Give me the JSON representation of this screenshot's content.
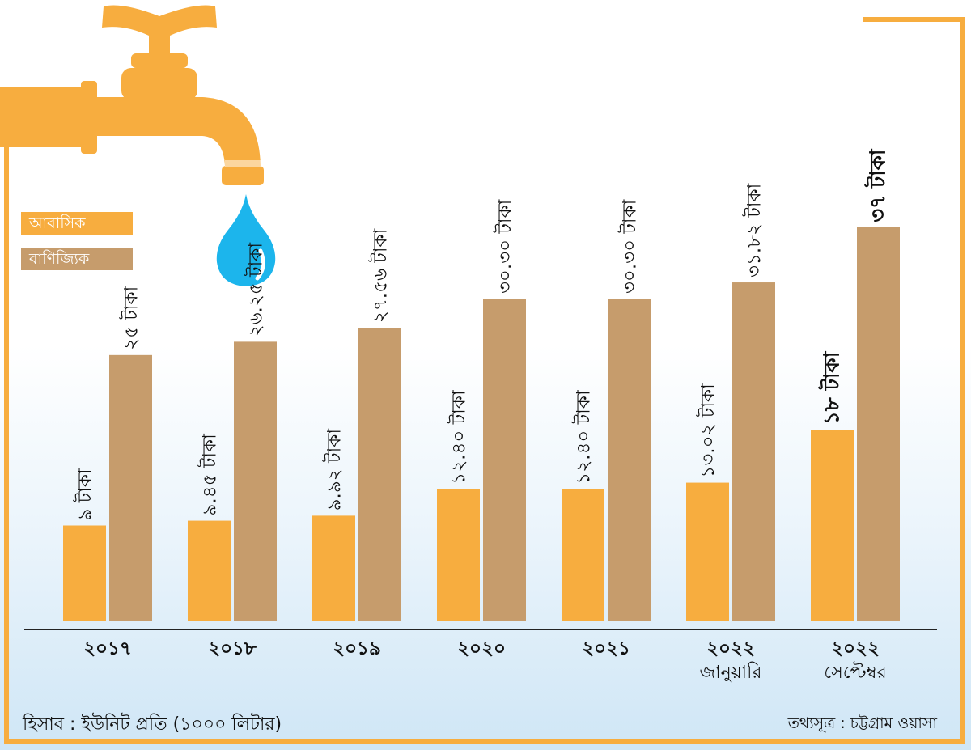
{
  "chart_data": {
    "type": "bar",
    "title": "",
    "xlabel": "",
    "ylabel": "",
    "ylim": [
      0,
      42
    ],
    "categories": [
      {
        "year": "২০১৭",
        "sub": ""
      },
      {
        "year": "২০১৮",
        "sub": ""
      },
      {
        "year": "২০১৯",
        "sub": ""
      },
      {
        "year": "২০২০",
        "sub": ""
      },
      {
        "year": "২০২১",
        "sub": ""
      },
      {
        "year": "২০২২",
        "sub": "জানুয়ারি"
      },
      {
        "year": "২০২২",
        "sub": "সেপ্টেম্বর"
      }
    ],
    "series": [
      {
        "name": "আবাসিক",
        "color": "#f7ad3f",
        "values": [
          9,
          9.45,
          9.92,
          12.4,
          12.4,
          13.02,
          18
        ],
        "labels": [
          "৯ টাকা",
          "৯.৪৫ টাকা",
          "৯.৯২ টাকা",
          "১২.৪০ টাকা",
          "১২.৪০ টাকা",
          "১৩.০২ টাকা",
          "১৮ টাকা"
        ]
      },
      {
        "name": "বাণিজ্যিক",
        "color": "#c69c6c",
        "values": [
          25,
          26.25,
          27.56,
          30.3,
          30.3,
          31.82,
          37
        ],
        "labels": [
          "২৫ টাকা",
          "২৬.২৫ টাকা",
          "২৭.৫৬ টাকা",
          "৩০.৩০ টাকা",
          "৩০.৩০ টাকা",
          "৩১.৮২ টাকা",
          "৩৭ টাকা"
        ]
      }
    ]
  },
  "legend": {
    "residential": "আবাসিক",
    "commercial": "বাণিজ্যিক"
  },
  "footer": {
    "unit_note": "হিসাব : ইউনিট প্রতি (১০০০ লিটার)",
    "source": "তথ্যসূত্র : চট্টগ্রাম ওয়াসা"
  },
  "colors": {
    "residential": "#f7ad3f",
    "commercial": "#c69c6c",
    "faucet": "#f7ad3f",
    "drop": "#1cb5ec",
    "frame": "#f7ad3f"
  }
}
